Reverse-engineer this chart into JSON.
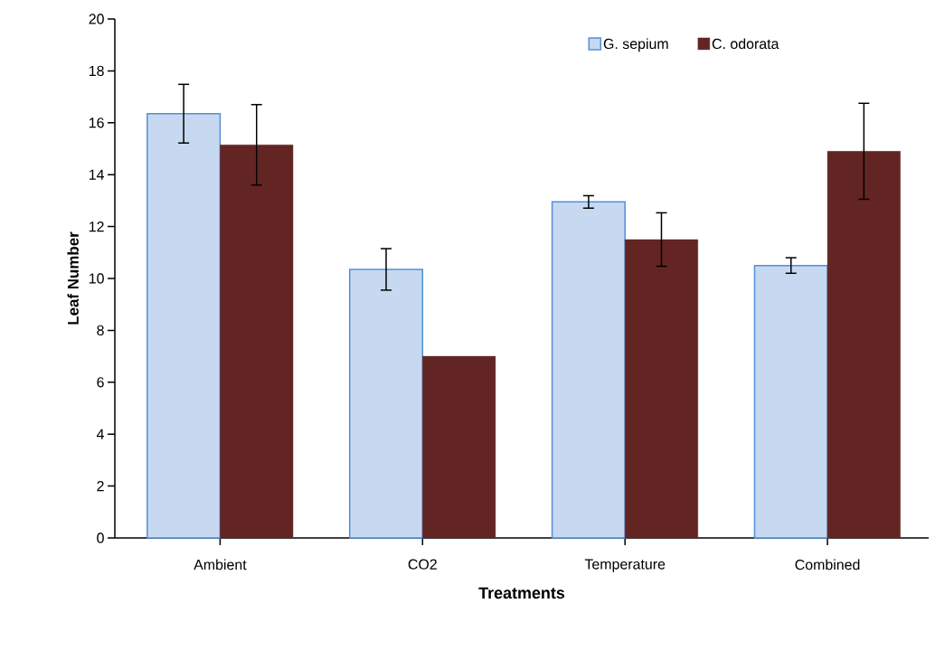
{
  "chart_data": {
    "type": "bar",
    "xlabel": "Treatments",
    "ylabel": "Leaf Number",
    "categories": [
      "Ambient",
      "CO2",
      "Temperature",
      "Combined"
    ],
    "series": [
      {
        "name": "G. sepium",
        "color": "#c6d9f1",
        "values": [
          16.35,
          10.35,
          12.95,
          10.5
        ],
        "errors": [
          1.13,
          0.8,
          0.24,
          0.3
        ]
      },
      {
        "name": "C. odorata",
        "color": "#632523",
        "values": [
          15.15,
          7.0,
          11.5,
          14.9
        ],
        "errors": [
          1.55,
          null,
          1.03,
          1.85
        ]
      }
    ],
    "ylim": [
      0,
      20
    ],
    "yticks": [
      0,
      2,
      4,
      6,
      8,
      10,
      12,
      14,
      16,
      18,
      20
    ],
    "grid": false,
    "legend": "top"
  }
}
